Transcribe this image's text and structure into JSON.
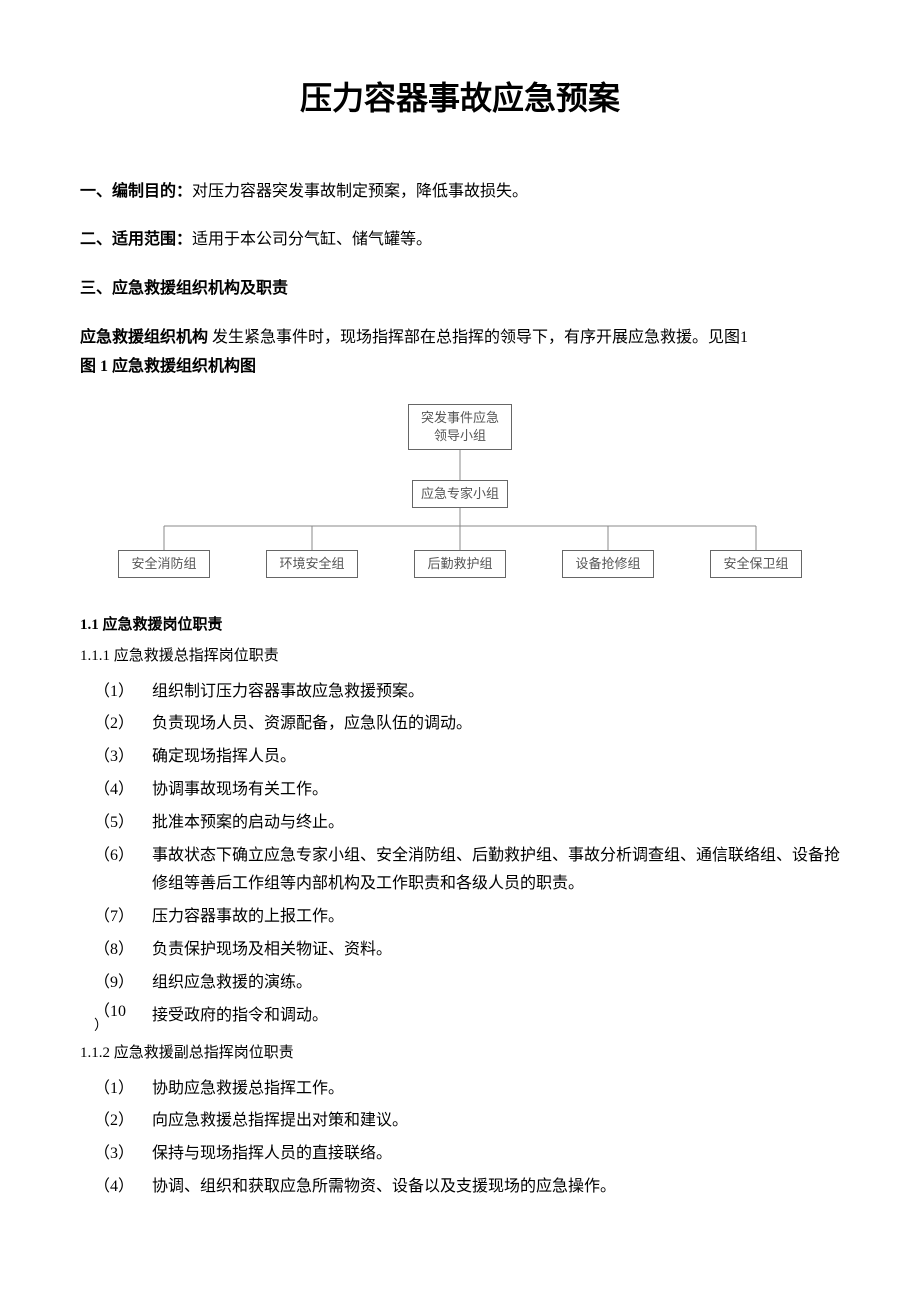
{
  "title": "压力容器事故应急预案",
  "section1": {
    "heading": "一、编制目的：",
    "text": "对压力容器突发事故制定预案，降低事故损失。"
  },
  "section2": {
    "heading": "二、适用范围：",
    "text": "适用于本公司分气缸、储气罐等。"
  },
  "section3": {
    "heading": "三、应急救援组织机构及职责"
  },
  "orgIntro": {
    "bold1": "应急救援组织机构",
    "text1": " 发生紧急事件时，现场指挥部在总指挥的领导下，有序开展应急救援。见图1 ",
    "bold2": "图  1 应急救援组织机构图"
  },
  "orgChart": {
    "nodes": {
      "top": "突发事件应急\n领导小组",
      "mid": "应急专家小组",
      "bottom": [
        "安全消防组",
        "环境安全组",
        "后勤救护组",
        "设备抢修组",
        "安全保卫组"
      ]
    },
    "lineColor": "#888888",
    "borderColor": "#666666",
    "fontSize": 13,
    "textColor": "#555555"
  },
  "h11": "1.1 应急救援岗位职责",
  "h111": " 1.1.1 应急救援总指挥岗位职责",
  "list111": [
    "组织制订压力容器事故应急救援预案。",
    "负责现场人员、资源配备，应急队伍的调动。",
    "确定现场指挥人员。",
    "协调事故现场有关工作。",
    "批准本预案的启动与终止。",
    "事故状态下确立应急专家小组、安全消防组、后勤救护组、事故分析调查组、通信联络组、设备抢修组等善后工作组等内部机构及工作职责和各级人员的职责。",
    "压力容器事故的上报工作。",
    "负责保护现场及相关物证、资料。",
    "组织应急救援的演练。",
    "接受政府的指令和调动。"
  ],
  "h112": " 1.1.2 应急救援副总指挥岗位职责",
  "list112": [
    "协助应急救援总指挥工作。",
    "向应急救援总指挥提出对策和建议。",
    "保持与现场指挥人员的直接联络。",
    "协调、组织和获取应急所需物资、设备以及支援现场的应急操作。"
  ]
}
